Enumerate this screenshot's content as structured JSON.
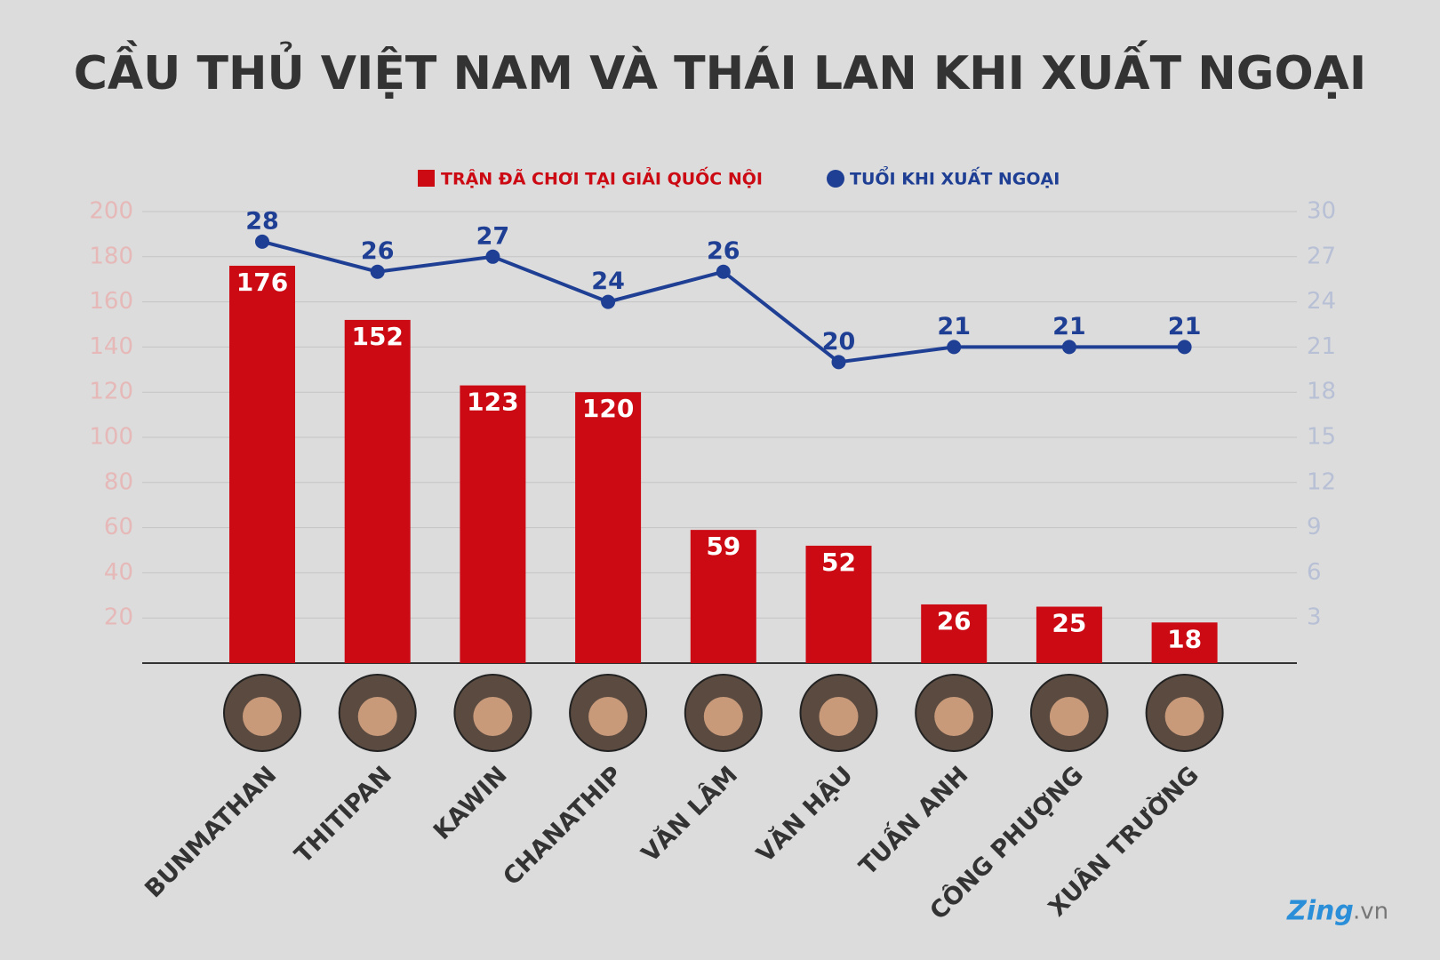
{
  "chart_data": {
    "type": "bar-line",
    "title": "CẦU THỦ VIỆT NAM VÀ THÁI LAN KHI XUẤT NGOẠI",
    "categories": [
      "BUNMATHAN",
      "THITIPAN",
      "KAWIN",
      "CHANATHIP",
      "VĂN LÂM",
      "VĂN HẬU",
      "TUẤN ANH",
      "CÔNG PHƯỢNG",
      "XUÂN TRƯỜNG"
    ],
    "series": [
      {
        "name": "TRẬN ĐÃ CHƠI TẠI GIẢI QUỐC NỘI",
        "type": "bar",
        "axis": "y",
        "color": "#cc0a14",
        "values": [
          176,
          152,
          123,
          120,
          59,
          52,
          26,
          25,
          18
        ]
      },
      {
        "name": "TUỔI KHI XUẤT NGOẠI",
        "type": "line",
        "axis": "y2",
        "color": "#1f3f94",
        "values": [
          28,
          26,
          27,
          24,
          26,
          20,
          21,
          21,
          21
        ]
      }
    ],
    "ylim": [
      0,
      200
    ],
    "yticks": [
      20,
      40,
      60,
      80,
      100,
      120,
      140,
      160,
      180,
      200
    ],
    "y2lim": [
      0,
      30
    ],
    "y2ticks": [
      3,
      6,
      9,
      12,
      15,
      18,
      21,
      24,
      27,
      30
    ],
    "grid": true,
    "source": {
      "brand": "Zing",
      "suffix": ".vn"
    }
  }
}
